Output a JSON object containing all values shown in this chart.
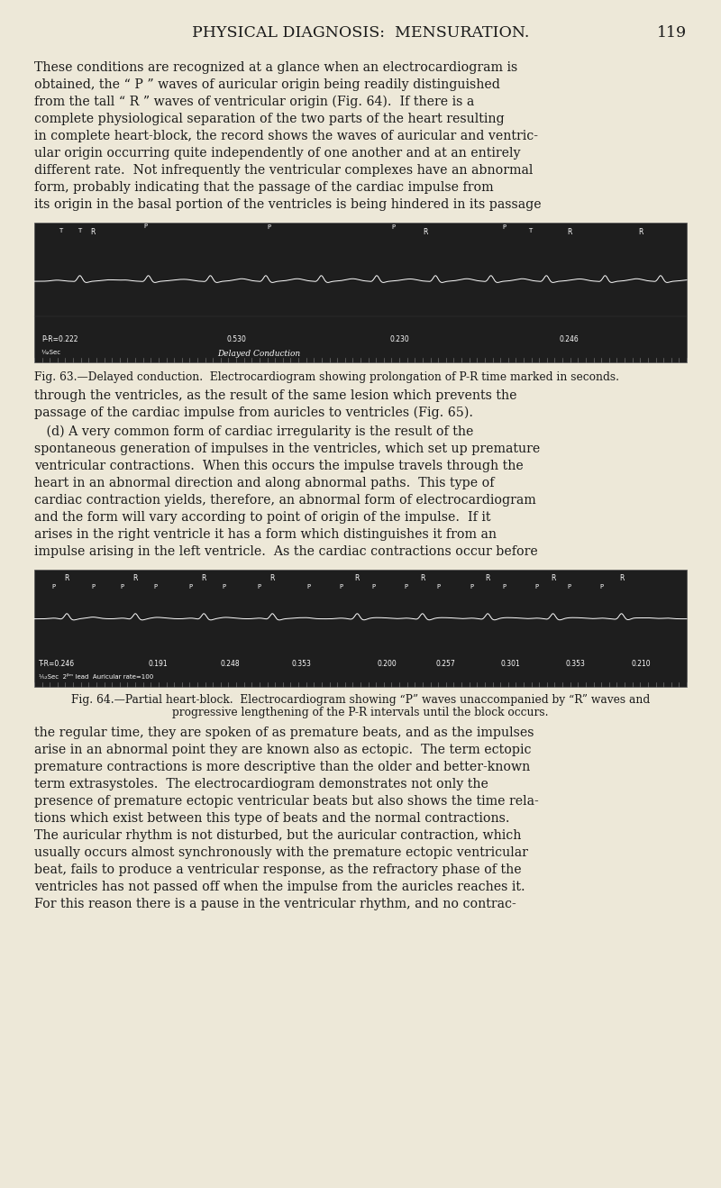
{
  "page_bg": "#ede8d8",
  "text_color": "#1a1a1a",
  "header_text": "PHYSICAL DIAGNOSIS:  MENSURATION.",
  "page_number": "119",
  "header_fontsize": 12.5,
  "body_fontsize": 10.2,
  "caption_fontsize": 8.8,
  "fig1_caption": "Fig. 63.—Delayed conduction.  Electrocardiogram showing prolongation of P-R time marked in seconds.",
  "fig2_caption_line1": "Fig. 64.—Partial heart-block.  Electrocardiogram showing “P” waves unaccompanied by “R” waves and",
  "fig2_caption_line2": "progressive lengthening of the P-R intervals until the block occurs.",
  "para1_lines": [
    "These conditions are recognized at a glance when an electrocardiogram is",
    "obtained, the “ P ” waves of auricular origin being readily distinguished",
    "from the tall “ R ” waves of ventricular origin (Fig. 64).  If there is a",
    "complete physiological separation of the two parts of the heart resulting",
    "in complete heart-block, the record shows the waves of auricular and ventric-",
    "ular origin occurring quite independently of one another and at an entirely",
    "different rate.  Not infrequently the ventricular complexes have an abnormal",
    "form, probably indicating that the passage of the cardiac impulse from",
    "its origin in the basal portion of the ventricles is being hindered in its passage"
  ],
  "para2_lines": [
    "through the ventricles, as the result of the same lesion which prevents the",
    "passage of the cardiac impulse from auricles to ventricles (Fig. 65)."
  ],
  "para3_lines": [
    "   (d) A very common form of cardiac irregularity is the result of the",
    "spontaneous generation of impulses in the ventricles, which set up premature",
    "ventricular contractions.  When this occurs the impulse travels through the",
    "heart in an abnormal direction and along abnormal paths.  This type of",
    "cardiac contraction yields, therefore, an abnormal form of electrocardiogram",
    "and the form will vary according to point of origin of the impulse.  If it",
    "arises in the right ventricle it has a form which distinguishes it from an",
    "impulse arising in the left ventricle.  As the cardiac contractions occur before"
  ],
  "para4_lines": [
    "the regular time, they are spoken of as premature beats, and as the impulses",
    "arise in an abnormal point they are known also as ectopic.  The term ectopic",
    "premature contractions is more descriptive than the older and better-known",
    "term extrasystoles.  The electrocardiogram demonstrates not only the",
    "presence of premature ectopic ventricular beats but also shows the time rela-",
    "tions which exist between this type of beats and the normal contractions.",
    "The auricular rhythm is not disturbed, but the auricular contraction, which",
    "usually occurs almost synchronously with the premature ectopic ventricular",
    "beat, fails to produce a ventricular response, as the refractory phase of the",
    "ventricles has not passed off when the impulse from the auricles reaches it.",
    "For this reason there is a pause in the ventricular rhythm, and no contrac-"
  ]
}
